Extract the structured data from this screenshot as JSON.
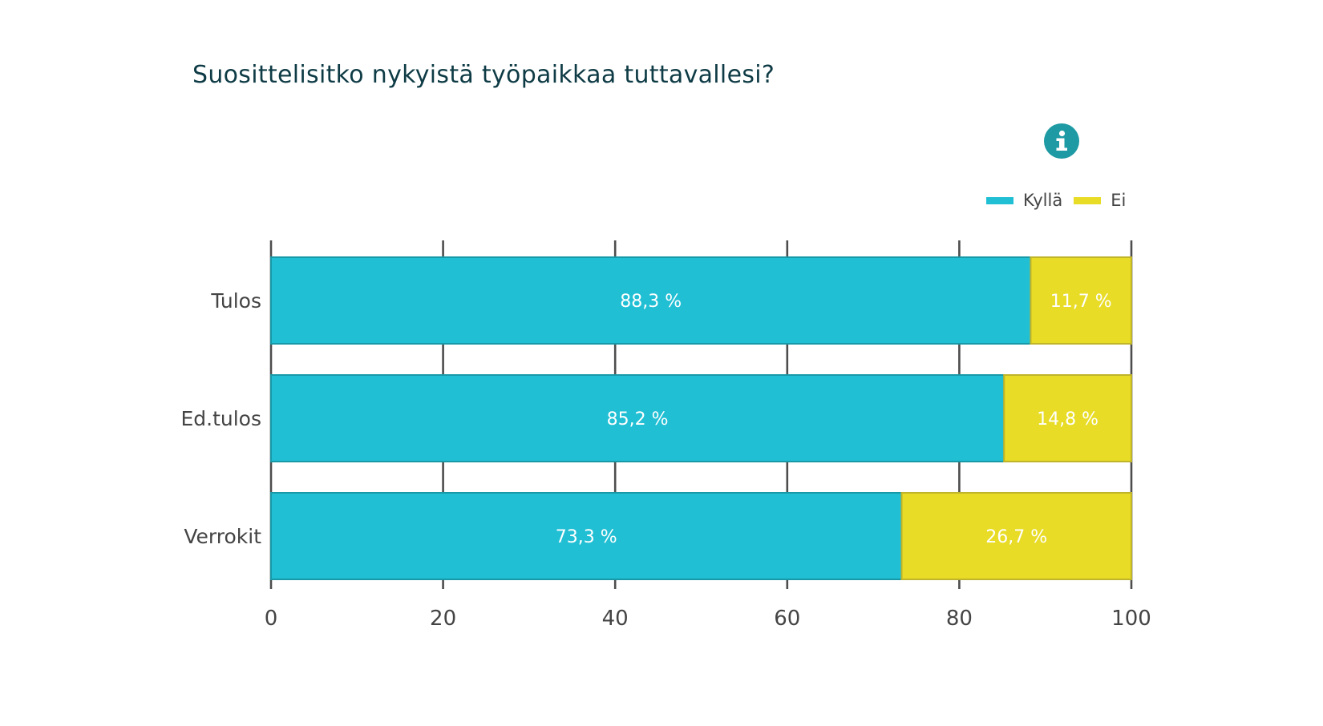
{
  "chart_data": {
    "type": "bar",
    "orientation": "horizontal",
    "stacked": true,
    "title": "Suosittelisitko nykyistä työpaikkaa tuttavallesi?",
    "categories": [
      "Tulos",
      "Ed.tulos",
      "Verrokit"
    ],
    "series": [
      {
        "name": "Kyllä",
        "color": "#21bfd4",
        "values": [
          88.3,
          85.2,
          73.3
        ],
        "labels": [
          "88,3 %",
          "85,2 %",
          "73,3 %"
        ]
      },
      {
        "name": "Ei",
        "color": "#e8dc26",
        "values": [
          11.7,
          14.8,
          26.7
        ],
        "labels": [
          "11,7 %",
          "14,8 %",
          "26,7 %"
        ]
      }
    ],
    "xlim": [
      0,
      100
    ],
    "xticks": [
      0,
      20,
      40,
      60,
      80,
      100
    ],
    "xtick_labels": [
      "0",
      "20",
      "40",
      "60",
      "80",
      "100"
    ],
    "grid": "vertical",
    "legend_position": "top-right",
    "info_icon": "info-icon"
  }
}
